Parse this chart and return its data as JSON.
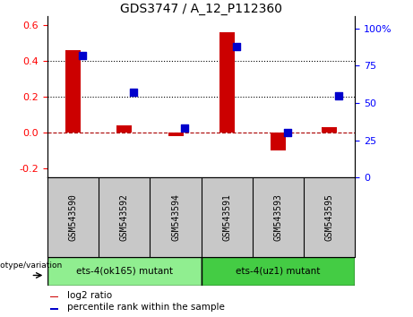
{
  "title": "GDS3747 / A_12_P112360",
  "samples": [
    "GSM543590",
    "GSM543592",
    "GSM543594",
    "GSM543591",
    "GSM543593",
    "GSM543595"
  ],
  "log2_ratio": [
    0.46,
    0.04,
    -0.02,
    0.56,
    -0.1,
    0.03
  ],
  "percentile": [
    82,
    57,
    33,
    88,
    30,
    55
  ],
  "bar_color": "#cc0000",
  "dot_color": "#0000cc",
  "group1_label": "ets-4(ok165) mutant",
  "group2_label": "ets-4(uz1) mutant",
  "group1_indices": [
    0,
    1,
    2
  ],
  "group2_indices": [
    3,
    4,
    5
  ],
  "group1_color": "#90ee90",
  "group2_color": "#44cc44",
  "ylim_left": [
    -0.25,
    0.65
  ],
  "ylim_right": [
    0,
    108.33
  ],
  "yticks_left": [
    -0.2,
    0.0,
    0.2,
    0.4,
    0.6
  ],
  "yticks_right": [
    0,
    25,
    50,
    75,
    100
  ],
  "hline_y": [
    0.2,
    0.4
  ],
  "zero_line_y": 0.0,
  "legend_log2": "log2 ratio",
  "legend_pct": "percentile rank within the sample",
  "bar_width": 0.3,
  "dot_size": 40,
  "label_bg": "#c8c8c8",
  "genotype_label": "genotype/variation"
}
